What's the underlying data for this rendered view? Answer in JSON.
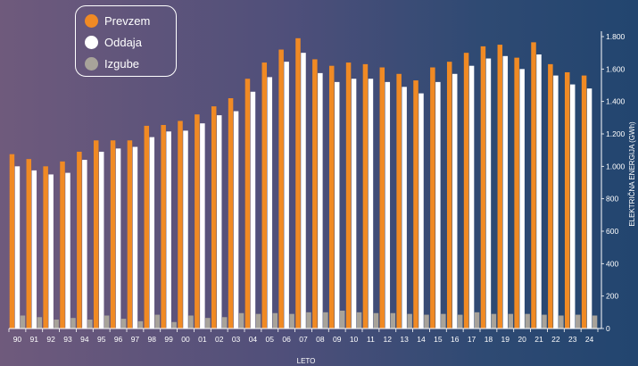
{
  "chart_data": {
    "type": "bar",
    "categories": [
      "90",
      "91",
      "92",
      "93",
      "94",
      "95",
      "96",
      "97",
      "98",
      "99",
      "00",
      "01",
      "02",
      "03",
      "04",
      "05",
      "06",
      "07",
      "08",
      "09",
      "10",
      "11",
      "12",
      "13",
      "14",
      "15",
      "16",
      "17",
      "18",
      "19",
      "20",
      "21",
      "22",
      "23",
      "24"
    ],
    "series": [
      {
        "name": "Prevzem",
        "color": "#f08a24",
        "values": [
          1075,
          1045,
          1000,
          1030,
          1090,
          1160,
          1160,
          1160,
          1250,
          1255,
          1280,
          1320,
          1370,
          1420,
          1540,
          1640,
          1720,
          1790,
          1660,
          1620,
          1640,
          1630,
          1610,
          1570,
          1530,
          1610,
          1645,
          1700,
          1740,
          1750,
          1670,
          1765,
          1630,
          1580,
          1560
        ]
      },
      {
        "name": "Oddaja",
        "color": "#ffffff",
        "values": [
          1000,
          975,
          950,
          960,
          1040,
          1090,
          1110,
          1120,
          1180,
          1215,
          1220,
          1265,
          1315,
          1340,
          1460,
          1550,
          1645,
          1700,
          1575,
          1520,
          1540,
          1540,
          1520,
          1490,
          1450,
          1520,
          1570,
          1620,
          1665,
          1680,
          1600,
          1690,
          1560,
          1505,
          1480
        ]
      },
      {
        "name": "Izgube",
        "color": "#a8a39a",
        "values": [
          80,
          70,
          55,
          65,
          55,
          80,
          60,
          45,
          85,
          40,
          80,
          65,
          70,
          95,
          90,
          95,
          90,
          100,
          100,
          110,
          100,
          95,
          95,
          90,
          85,
          90,
          85,
          100,
          90,
          90,
          90,
          85,
          80,
          85,
          80
        ]
      }
    ],
    "xlabel": "LETO",
    "ylabel": "ELEKTRIČNA ENERGIJA (GWh)",
    "ylim": [
      0,
      1800
    ],
    "yticks": [
      0,
      200,
      400,
      600,
      800,
      1000,
      1200,
      1400,
      1600,
      1800
    ],
    "ytick_labels": [
      "0",
      "200",
      "400",
      "600",
      "800",
      "1.000",
      "1.200",
      "1.400",
      "1.600",
      "1.800"
    ],
    "y_axis_side": "right",
    "grid": false,
    "legend": {
      "placement": "top-left",
      "items": [
        "Prevzem",
        "Oddaja",
        "Izgube"
      ]
    }
  }
}
